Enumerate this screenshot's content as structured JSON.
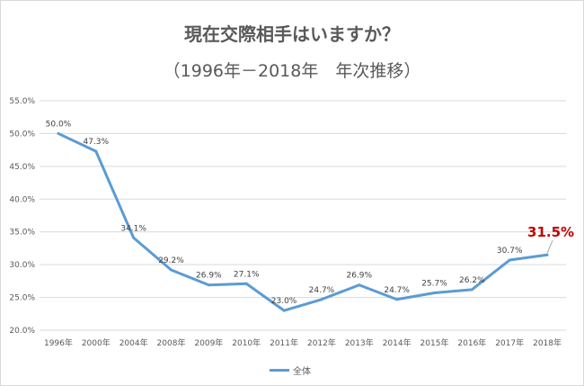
{
  "chart_data": {
    "type": "line",
    "title": "現在交際相手はいますか？",
    "subtitle": "（1996年－2018年　年次推移）",
    "categories": [
      "1996年",
      "2000年",
      "2004年",
      "2008年",
      "2009年",
      "2010年",
      "2011年",
      "2012年",
      "2013年",
      "2014年",
      "2015年",
      "2016年",
      "2017年",
      "2018年"
    ],
    "series": [
      {
        "name": "全体",
        "values": [
          50.0,
          47.3,
          34.1,
          29.2,
          26.9,
          27.1,
          23.0,
          24.7,
          26.9,
          24.7,
          25.7,
          26.2,
          30.7,
          31.5
        ],
        "labels": [
          "50.0%",
          "47.3%",
          "34.1%",
          "29.2%",
          "26.9%",
          "27.1%",
          "23.0%",
          "24.7%",
          "26.9%",
          "24.7%",
          "25.7%",
          "26.2%",
          "30.7%",
          "31.5%"
        ],
        "color": "#5b9bd5"
      }
    ],
    "y_ticks": [
      "20.0%",
      "25.0%",
      "30.0%",
      "35.0%",
      "40.0%",
      "45.0%",
      "50.0%",
      "55.0%"
    ],
    "ylim": [
      20,
      55
    ],
    "grid": true,
    "legend": "bottom",
    "highlight_color": "#c00000"
  }
}
